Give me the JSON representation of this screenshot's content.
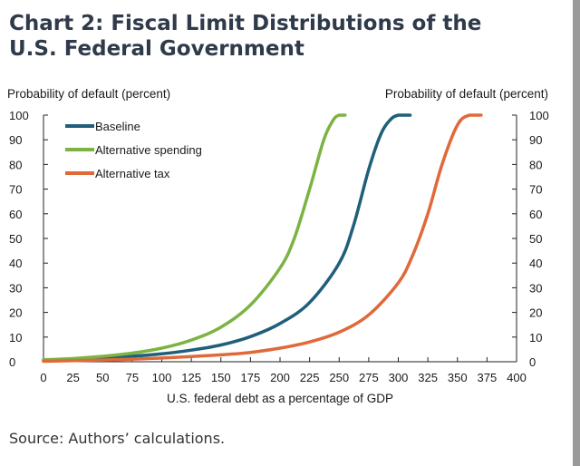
{
  "title": "Chart 2: Fiscal Limit Distributions of the U.S. Federal Government",
  "source": "Source: Authors’ calculations.",
  "chart_data": {
    "type": "line",
    "xlabel": "U.S. federal debt as a percentage of GDP",
    "ylabel_left": "Probability of default (percent)",
    "ylabel_right": "Probability of default (percent)",
    "xlim": [
      0,
      400
    ],
    "ylim": [
      0,
      100
    ],
    "x_ticks": [
      0,
      25,
      50,
      75,
      100,
      125,
      150,
      175,
      200,
      225,
      250,
      275,
      300,
      325,
      350,
      375,
      400
    ],
    "y_ticks": [
      0,
      10,
      20,
      30,
      40,
      50,
      60,
      70,
      80,
      90,
      100
    ],
    "grid": false,
    "legend_position": "top-left",
    "series": [
      {
        "name": "Baseline",
        "color": "#1f5f7a",
        "x": [
          0,
          25,
          50,
          75,
          100,
          125,
          150,
          175,
          200,
          225,
          250,
          262,
          275,
          285,
          293,
          300,
          310
        ],
        "y": [
          0.5,
          0.9,
          1.4,
          2.2,
          3.2,
          4.7,
          6.8,
          10.2,
          15.5,
          24,
          40,
          55,
          78,
          92,
          98,
          100,
          100
        ]
      },
      {
        "name": "Alternative spending",
        "color": "#7cb342",
        "x": [
          0,
          25,
          50,
          75,
          100,
          125,
          150,
          175,
          200,
          212,
          225,
          237,
          245,
          250,
          255
        ],
        "y": [
          0.8,
          1.3,
          2.2,
          3.5,
          5.5,
          8.8,
          14,
          23,
          38,
          50,
          70,
          90,
          98,
          100,
          100
        ]
      },
      {
        "name": "Alternative tax",
        "color": "#e0693a",
        "x": [
          0,
          50,
          100,
          150,
          175,
          200,
          225,
          250,
          275,
          300,
          312,
          325,
          337,
          350,
          360,
          370
        ],
        "y": [
          0.2,
          0.7,
          1.5,
          2.8,
          3.8,
          5.5,
          8,
          12,
          19,
          32,
          43,
          60,
          80,
          96,
          100,
          100
        ]
      }
    ]
  }
}
